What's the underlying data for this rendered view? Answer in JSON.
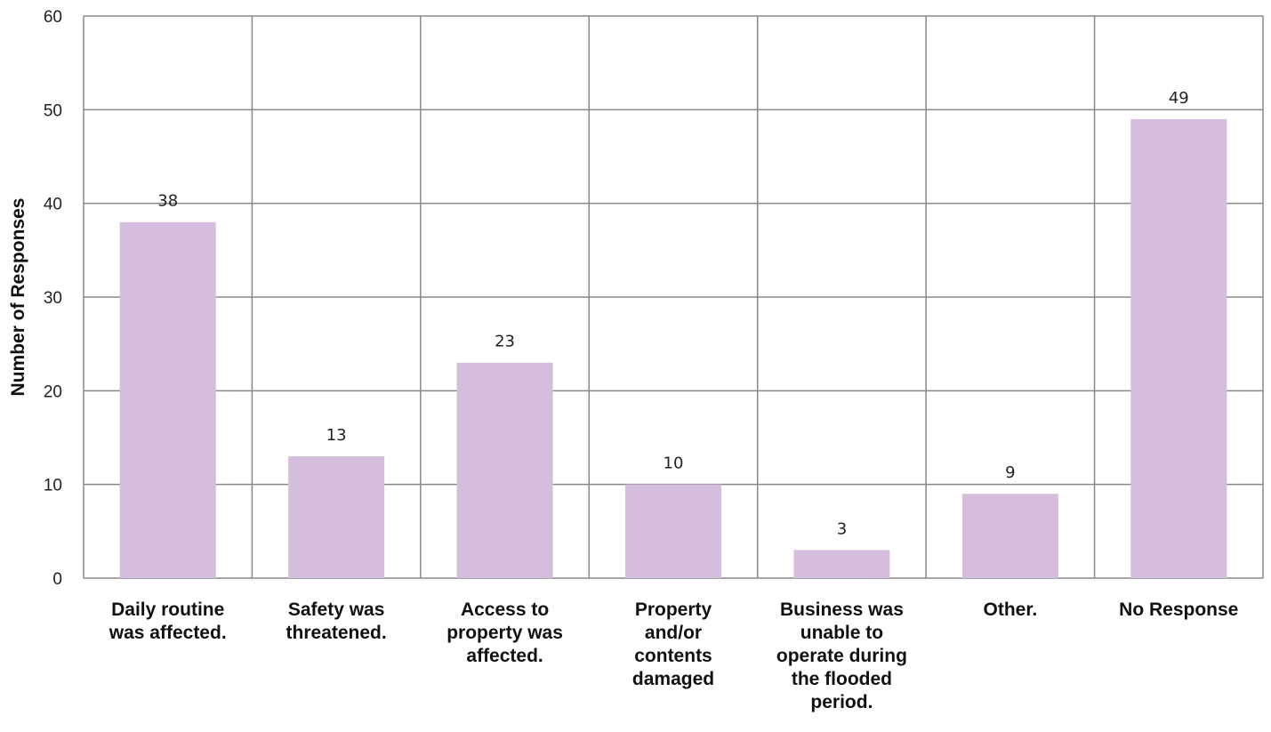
{
  "chart_data": {
    "type": "bar",
    "title": "",
    "xlabel": "",
    "ylabel": "Number of Responses",
    "ylim": [
      0,
      60
    ],
    "yticks": [
      0,
      10,
      20,
      30,
      40,
      50,
      60
    ],
    "grid": true,
    "categories": [
      [
        "Daily routine",
        "was affected."
      ],
      [
        "Safety was",
        "threatened."
      ],
      [
        "Access to",
        "property was",
        "affected."
      ],
      [
        "Property",
        "and/or",
        "contents",
        "damaged"
      ],
      [
        "Business was",
        "unable to",
        "operate during",
        "the flooded",
        "period."
      ],
      [
        "Other."
      ],
      [
        "No Response"
      ]
    ],
    "values": [
      38,
      13,
      23,
      10,
      3,
      9,
      49
    ],
    "bar_color": "#d5bedd",
    "grid_color": "#888888"
  }
}
